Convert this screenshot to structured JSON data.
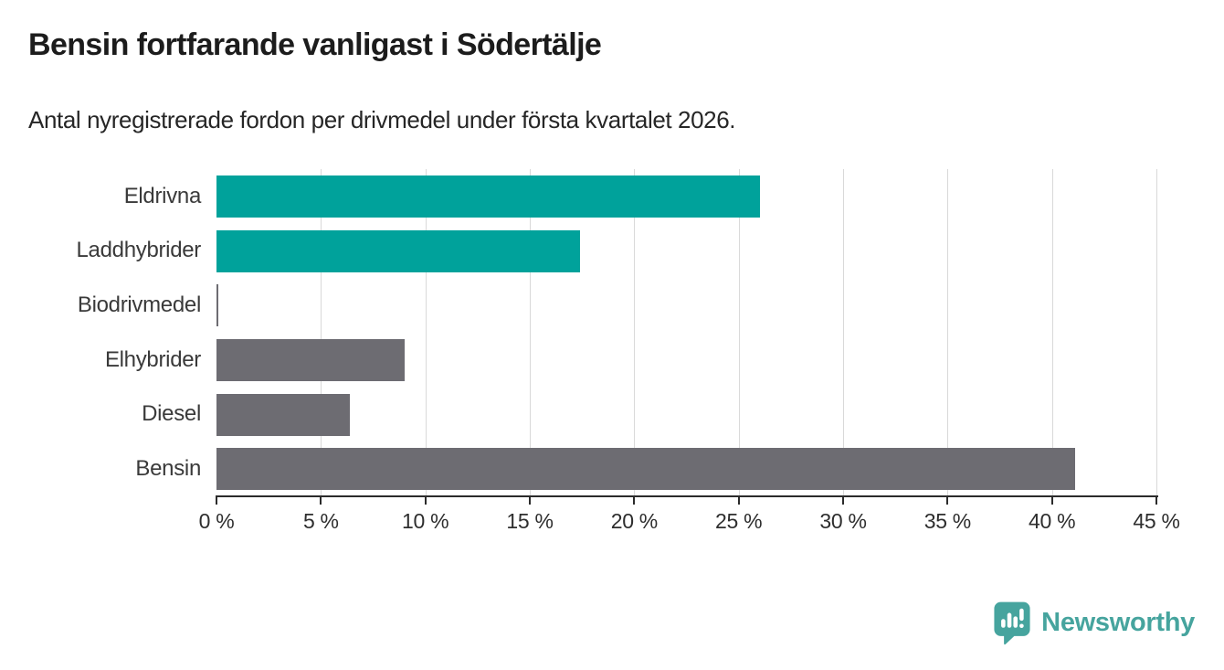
{
  "title": "Bensin fortfarande vanligast i Södertälje",
  "subtitle": "Antal nyregistrerade fordon per drivmedel under första kvartalet 2026.",
  "chart_data": {
    "type": "bar",
    "orientation": "horizontal",
    "title": "Bensin fortfarande vanligast i Södertälje",
    "subtitle": "Antal nyregistrerade fordon per drivmedel under första kvartalet 2026.",
    "categories": [
      "Eldrivna",
      "Laddhybrider",
      "Biodrivmedel",
      "Elhybrider",
      "Diesel",
      "Bensin"
    ],
    "values": [
      26,
      17.4,
      0.1,
      9,
      6.4,
      41.1
    ],
    "unit": "%",
    "xlim": [
      0,
      45
    ],
    "tick_step": 5,
    "x_tick_labels": [
      "0 %",
      "5 %",
      "10 %",
      "15 %",
      "20 %",
      "25 %",
      "30 %",
      "35 %",
      "40 %",
      "45 %"
    ],
    "bar_colors": [
      "#00a29b",
      "#00a29b",
      "#6d6c72",
      "#6d6c72",
      "#6d6c72",
      "#6d6c72"
    ],
    "grid": "vertical-light",
    "legend": "none"
  },
  "colors": {
    "teal": "#00a29b",
    "gray": "#6d6c72",
    "gridline": "#d9d9d9",
    "axis": "#2b2b2b",
    "brand": "#46a49e"
  },
  "branding": {
    "logo_text": "Newsworthy",
    "logo_icon": "bar-chart-speech-bubble-icon"
  }
}
